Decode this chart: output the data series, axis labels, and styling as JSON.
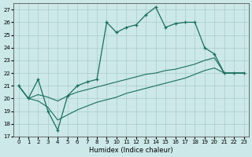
{
  "xlabel": "Humidex (Indice chaleur)",
  "bg_color": "#cce8e8",
  "grid_color": "#aacccc",
  "line_color": "#1a6e5e",
  "xlim": [
    -0.5,
    23.5
  ],
  "ylim": [
    17,
    27.5
  ],
  "xticks": [
    0,
    1,
    2,
    3,
    4,
    5,
    6,
    7,
    8,
    9,
    10,
    11,
    12,
    13,
    14,
    15,
    16,
    17,
    18,
    19,
    20,
    21,
    22,
    23
  ],
  "yticks": [
    17,
    18,
    19,
    20,
    21,
    22,
    23,
    24,
    25,
    26,
    27
  ],
  "curve1_x": [
    0,
    1,
    2,
    3,
    4,
    5,
    6,
    7,
    8,
    9,
    10,
    11,
    12,
    13,
    14,
    15,
    16,
    17,
    18,
    19,
    20,
    21,
    22,
    23
  ],
  "curve1_y": [
    21,
    20,
    21.5,
    19,
    17.5,
    20.2,
    21.0,
    21.3,
    21.5,
    26,
    25.2,
    25.6,
    25.8,
    26.6,
    27.2,
    25.6,
    25.9,
    26.0,
    26.0,
    24.0,
    23.5,
    22,
    22,
    22
  ],
  "curve2_x": [
    0,
    1,
    2,
    3,
    4,
    5,
    6,
    7,
    8,
    9,
    10,
    11,
    12,
    13,
    14,
    15,
    16,
    17,
    18,
    19,
    20,
    21,
    22,
    23
  ],
  "curve2_y": [
    21,
    20,
    20.3,
    20.1,
    19.8,
    20.2,
    20.5,
    20.7,
    20.9,
    21.1,
    21.3,
    21.5,
    21.7,
    21.9,
    22.0,
    22.2,
    22.3,
    22.5,
    22.7,
    23.0,
    23.2,
    22,
    22,
    22
  ],
  "curve3_x": [
    0,
    1,
    2,
    3,
    4,
    5,
    6,
    7,
    8,
    9,
    10,
    11,
    12,
    13,
    14,
    15,
    16,
    17,
    18,
    19,
    20,
    21,
    22,
    23
  ],
  "curve3_y": [
    21,
    20,
    19.8,
    19.3,
    18.3,
    18.7,
    19.1,
    19.4,
    19.7,
    19.9,
    20.1,
    20.4,
    20.6,
    20.8,
    21.0,
    21.2,
    21.4,
    21.6,
    21.9,
    22.2,
    22.4,
    22,
    22,
    22
  ]
}
